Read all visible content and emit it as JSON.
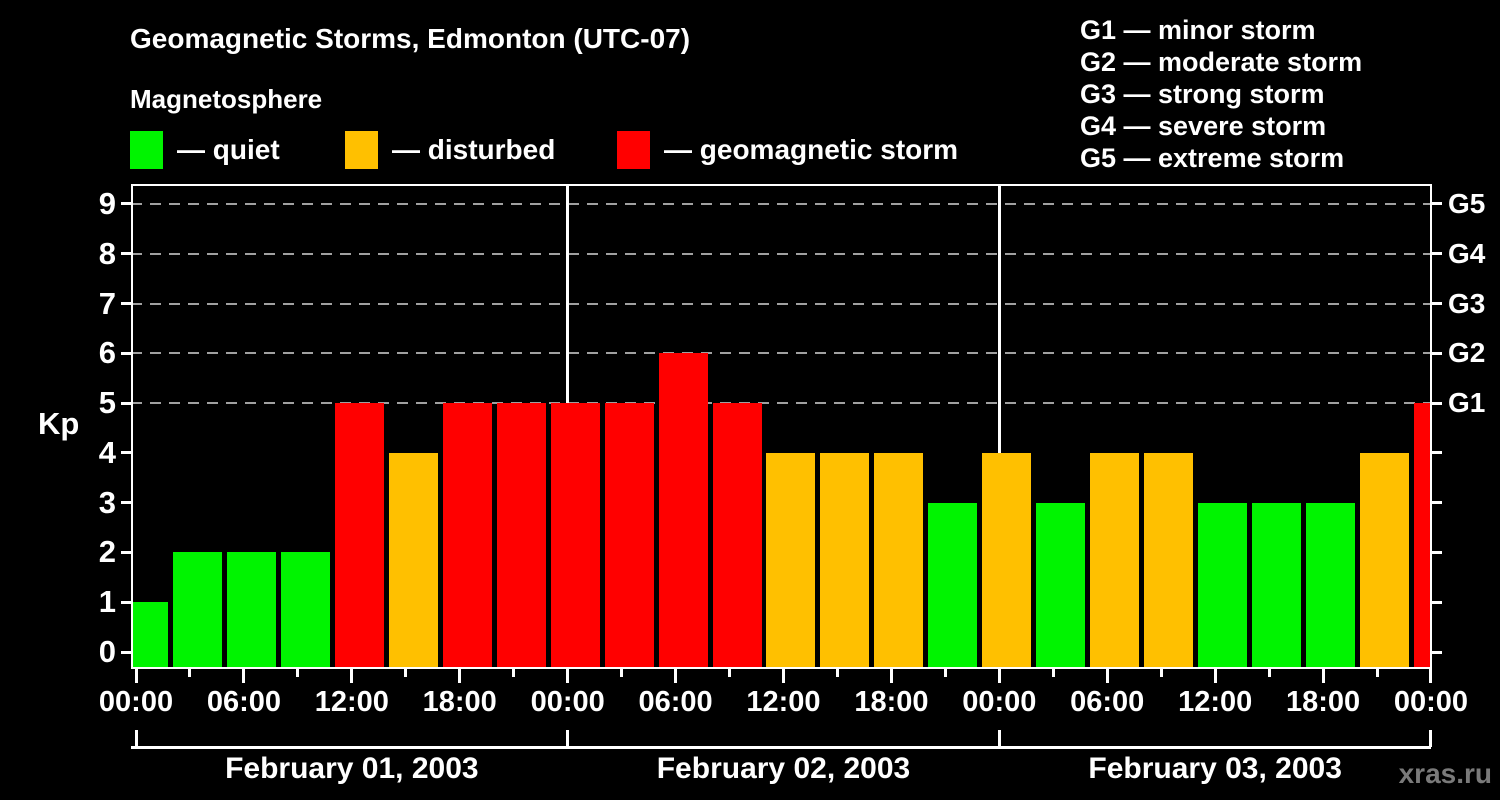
{
  "title": "Geomagnetic Storms, Edmonton (UTC-07)",
  "subtitle": "Magnetosphere",
  "watermark": "xras.ru",
  "legend": {
    "quiet": "— quiet",
    "disturbed": "— disturbed",
    "storm": "— geomagnetic storm"
  },
  "storm_scale": [
    "G1 — minor storm",
    "G2 — moderate storm",
    "G3 — strong storm",
    "G4 — severe storm",
    "G5 — extreme storm"
  ],
  "chart_data": {
    "type": "bar",
    "title": "Geomagnetic Storms, Edmonton (UTC-07)",
    "ylabel": "Kp",
    "ylim": [
      0,
      9
    ],
    "yticks": [
      0,
      1,
      2,
      3,
      4,
      5,
      6,
      7,
      8,
      9
    ],
    "right_axis": {
      "5": "G1",
      "6": "G2",
      "7": "G3",
      "8": "G4",
      "9": "G5"
    },
    "gridlines_at_kp": [
      5,
      6,
      7,
      8,
      9
    ],
    "grid": "dashed horizontal lines at G-storm levels only",
    "legend_position": "top",
    "bar_interval_hours": 3,
    "x_major_tick_labels": [
      "00:00",
      "06:00",
      "12:00",
      "18:00",
      "00:00",
      "06:00",
      "12:00",
      "18:00",
      "00:00",
      "06:00",
      "12:00",
      "18:00",
      "00:00"
    ],
    "days": [
      {
        "date": "February 01, 2003",
        "kp": [
          1,
          2,
          2,
          2,
          5,
          4,
          5,
          5
        ]
      },
      {
        "date": "February 02, 2003",
        "kp": [
          5,
          5,
          6,
          5,
          4,
          4,
          4,
          3
        ]
      },
      {
        "date": "February 03, 2003",
        "kp": [
          4,
          3,
          4,
          4,
          3,
          3,
          3,
          4
        ]
      }
    ],
    "next_period_partial_kp": 5,
    "colors": {
      "quiet": "#00f400",
      "disturbed": "#ffc000",
      "storm": "#ff0000"
    },
    "color_rule": "kp <= 3 quiet (green), kp = 4 disturbed (orange), kp >= 5 storm (red)"
  }
}
